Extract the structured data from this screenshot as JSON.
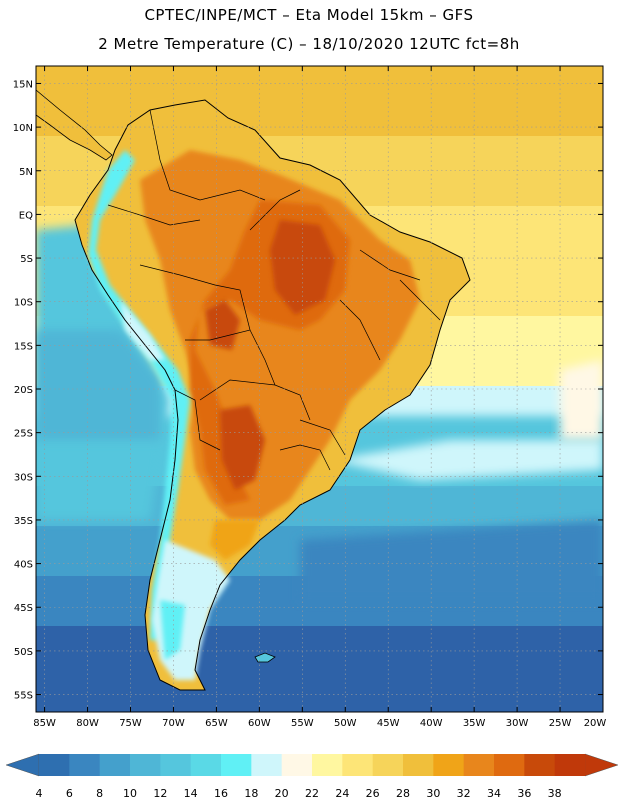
{
  "title_line1": "CPTEC/INPE/MCT –  Eta Model 15km – GFS",
  "title_line2": "2 Metre Temperature (C) – 18/10/2020 12UTC fct=8h",
  "map": {
    "lat_labels": [
      "15N",
      "10N",
      "5N",
      "EQ",
      "5S",
      "10S",
      "15S",
      "20S",
      "25S",
      "30S",
      "35S",
      "40S",
      "45S",
      "50S",
      "55S"
    ],
    "lon_labels": [
      "85W",
      "80W",
      "75W",
      "70W",
      "65W",
      "60W",
      "55W",
      "50W",
      "45W",
      "40W",
      "35W",
      "30W",
      "25W",
      "20W"
    ]
  },
  "colorbar": {
    "labels": [
      "4",
      "6",
      "8",
      "10",
      "12",
      "14",
      "16",
      "18",
      "20",
      "22",
      "24",
      "26",
      "28",
      "30",
      "32",
      "34",
      "36",
      "38"
    ],
    "colors": [
      "#2e6fb0",
      "#3a86c0",
      "#44a0cc",
      "#4fb6d6",
      "#55c6dd",
      "#5ad9e6",
      "#60f0f5",
      "#cff6fb",
      "#fff8e6",
      "#fff7a0",
      "#fde577",
      "#f6d45a",
      "#f0bf3b",
      "#f0a418",
      "#e8861c",
      "#df6a10",
      "#c84a0a",
      "#c0390a"
    ],
    "low_color": "#2e6fb0",
    "high_color": "#c0390a"
  },
  "chart_data": {
    "type": "map",
    "title": "2 Metre Temperature (C) – 18/10/2020 12UTC fct=8h",
    "model": "CPTEC/INPE/MCT – Eta Model 15km – GFS",
    "lat_range": [
      -57,
      17
    ],
    "lon_range": [
      -86,
      -20
    ],
    "units": "C",
    "colorbar_levels": [
      4,
      6,
      8,
      10,
      12,
      14,
      16,
      18,
      20,
      22,
      24,
      26,
      28,
      30,
      32,
      34,
      36,
      38
    ]
  }
}
